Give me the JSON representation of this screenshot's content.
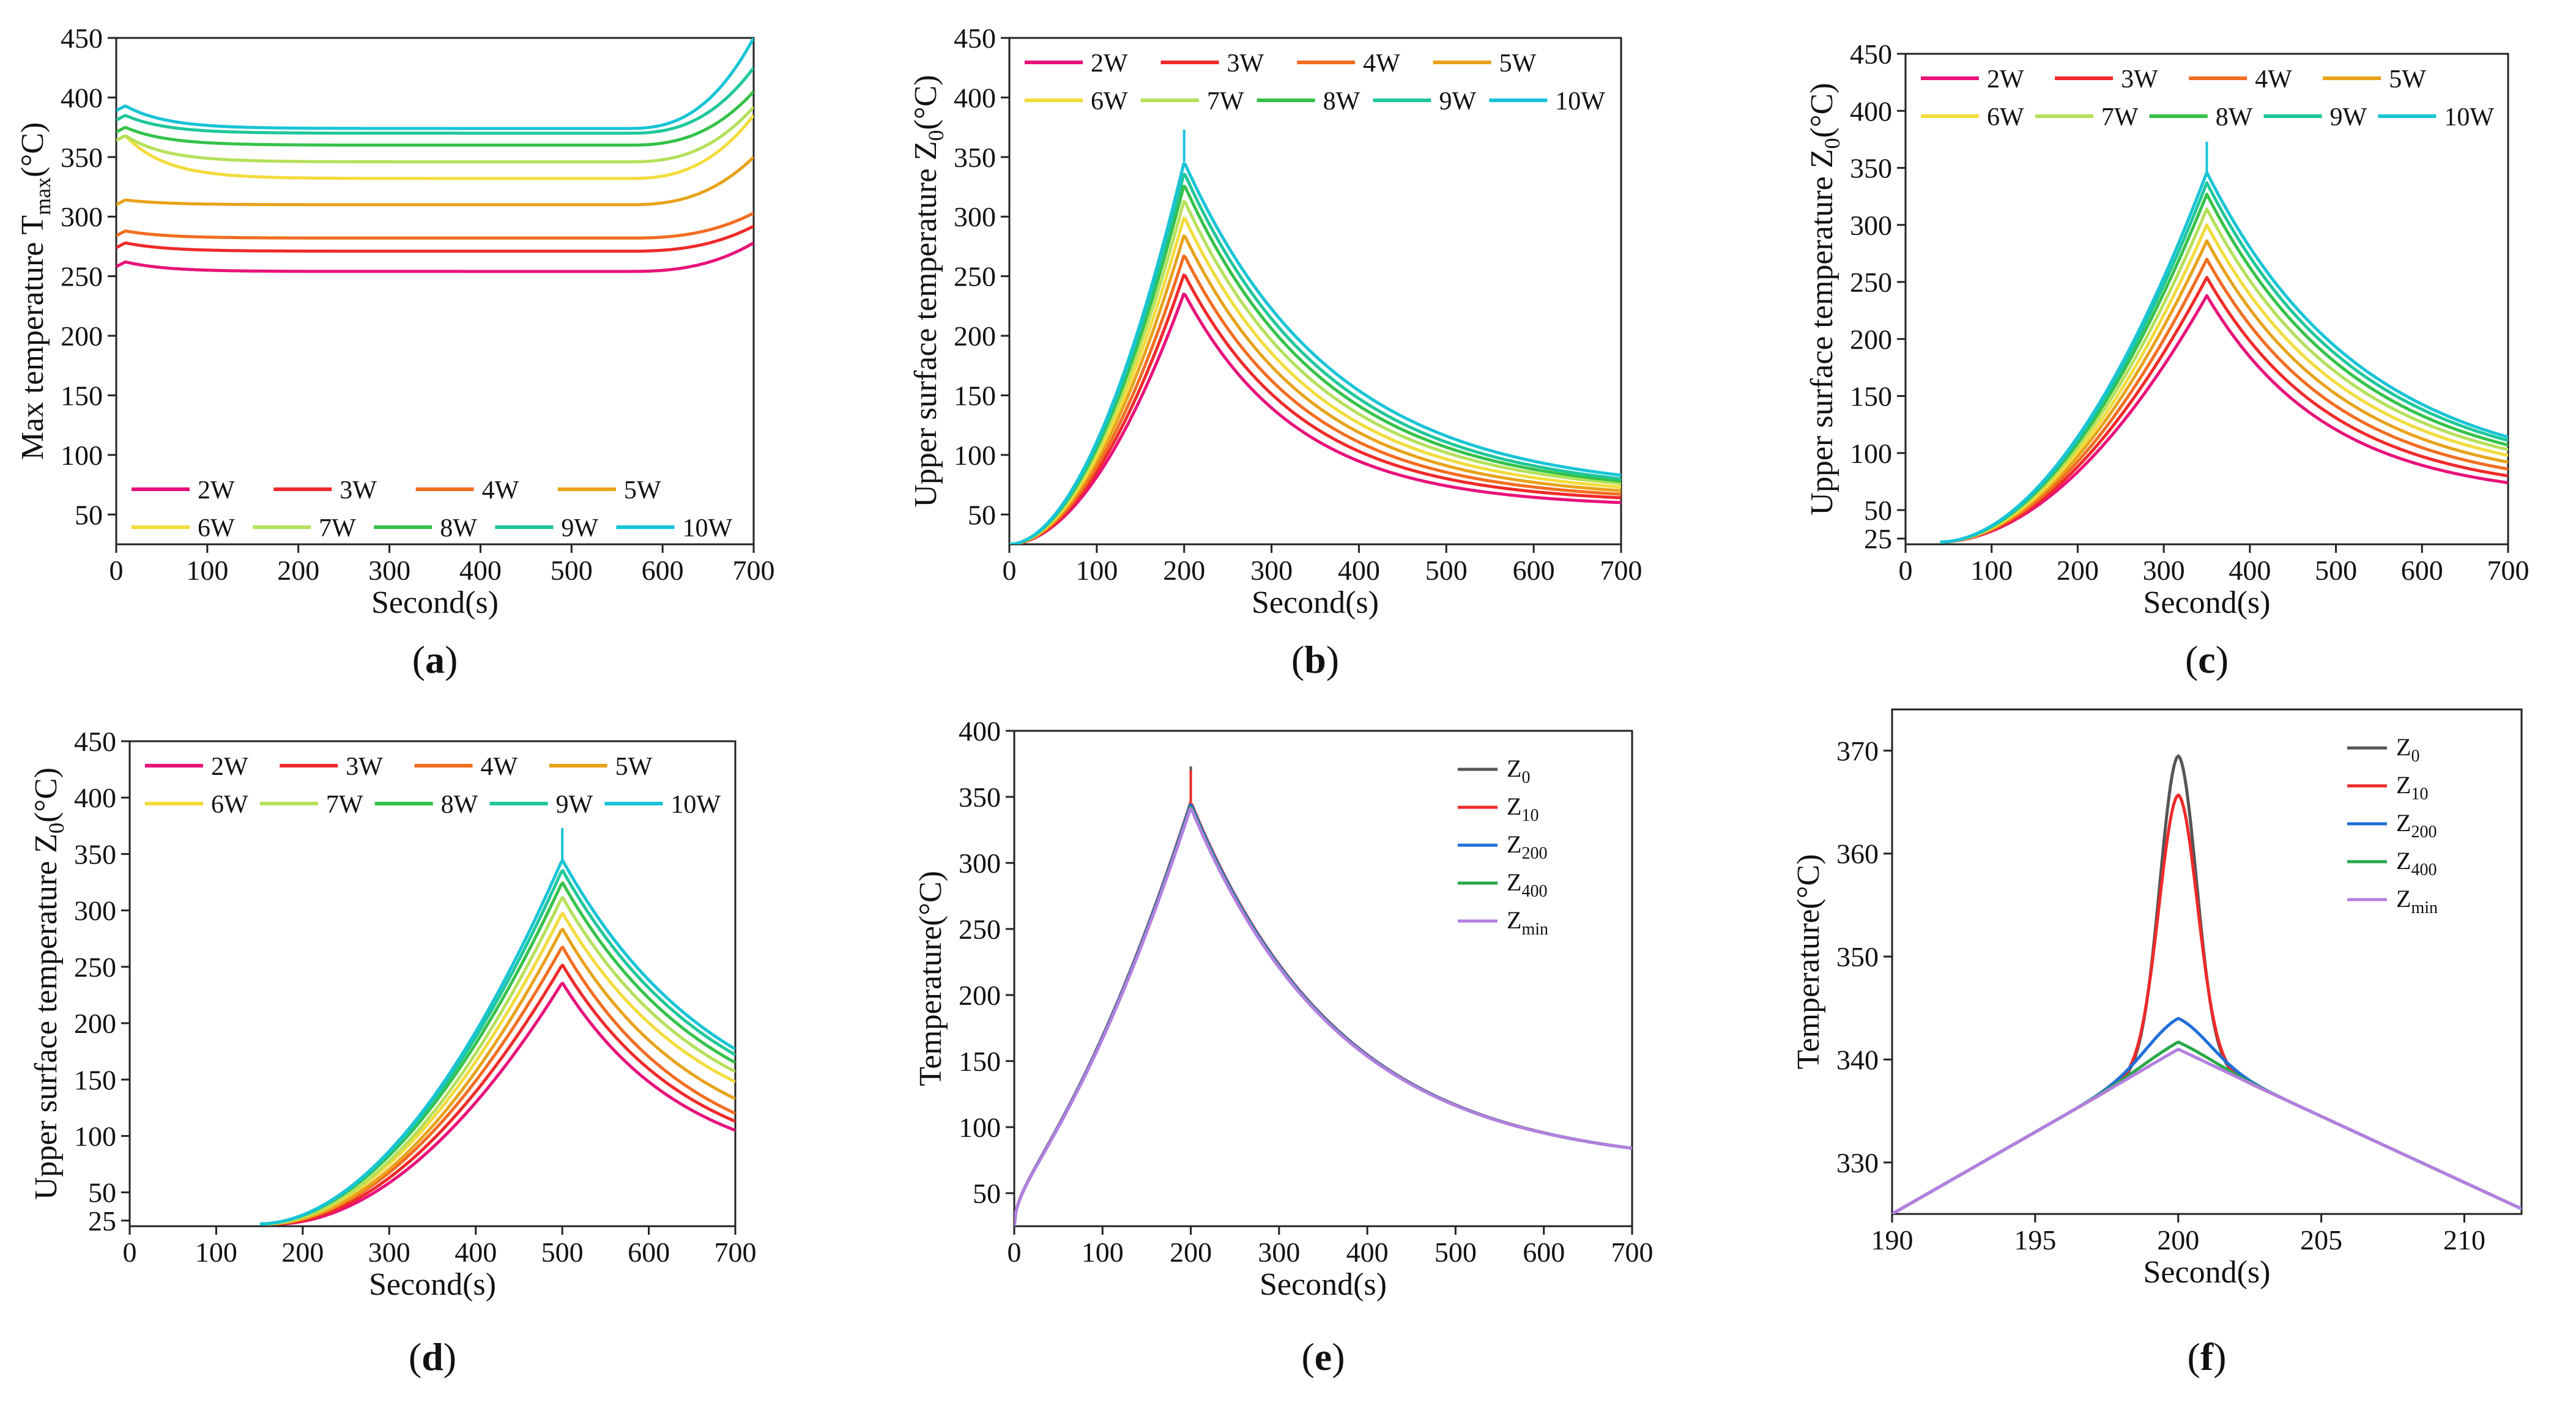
{
  "figure": {
    "series_colors": {
      "2W": "#e8127a",
      "3W": "#ef2a2a",
      "4W": "#f26d21",
      "5W": "#e8a21a",
      "6W": "#f2dc3c",
      "7W": "#b5e05a",
      "8W": "#35c24a",
      "9W": "#1fc79a",
      "10W": "#18c4d6",
      "Z_0": "#555555",
      "Z_10": "#ef2a2a",
      "Z_200": "#1f6fd8",
      "Z_400": "#2aa84a",
      "Z_min": "#b37fe0"
    }
  },
  "chart_data": [
    {
      "id": "a",
      "panel_label": "a",
      "type": "line",
      "xlabel": "Second(s)",
      "ylabel": "Max temperature T",
      "ylabel_sub": "max",
      "ylabel_tail": "(°C)",
      "xlim": [
        0,
        700
      ],
      "ylim": [
        25,
        450
      ],
      "xticks": [
        0,
        100,
        200,
        300,
        400,
        500,
        600,
        700
      ],
      "yticks": [
        50,
        100,
        150,
        200,
        250,
        300,
        350,
        400,
        450
      ],
      "legend": "bottom, 2 rows",
      "series": [
        {
          "name": "2W",
          "kind": "plateau",
          "start": 262,
          "plateau": 254,
          "end": 278
        },
        {
          "name": "3W",
          "kind": "plateau",
          "start": 278,
          "plateau": 271,
          "end": 292
        },
        {
          "name": "4W",
          "kind": "plateau",
          "start": 288,
          "plateau": 282,
          "end": 303
        },
        {
          "name": "5W",
          "kind": "plateau",
          "start": 314,
          "plateau": 310,
          "end": 350
        },
        {
          "name": "6W",
          "kind": "plateau",
          "start": 368,
          "plateau": 332,
          "end": 385
        },
        {
          "name": "7W",
          "kind": "plateau",
          "start": 368,
          "plateau": 346,
          "end": 392
        },
        {
          "name": "8W",
          "kind": "plateau",
          "start": 375,
          "plateau": 360,
          "end": 405
        },
        {
          "name": "9W",
          "kind": "plateau",
          "start": 385,
          "plateau": 370,
          "end": 425
        },
        {
          "name": "10W",
          "kind": "plateau",
          "start": 393,
          "plateau": 374,
          "end": 450
        }
      ]
    },
    {
      "id": "b",
      "panel_label": "b",
      "type": "line",
      "xlabel": "Second(s)",
      "ylabel": "Upper surface temperature Z",
      "ylabel_sub": "0",
      "ylabel_tail": "(°C)",
      "xlim": [
        0,
        700
      ],
      "ylim": [
        25,
        450
      ],
      "xticks": [
        0,
        100,
        200,
        300,
        400,
        500,
        600,
        700
      ],
      "yticks": [
        50,
        100,
        150,
        200,
        250,
        300,
        350,
        400,
        450
      ],
      "legend": "top, 2 rows",
      "series": [
        {
          "name": "2W",
          "kind": "peak",
          "t0": 0,
          "v0": 25,
          "tp": 200,
          "vp": 236,
          "v_end": 60,
          "rise_tau": 160,
          "decay_tau": 130
        },
        {
          "name": "3W",
          "kind": "peak",
          "t0": 0,
          "v0": 25,
          "tp": 200,
          "vp": 252,
          "v_end": 64,
          "rise_tau": 155,
          "decay_tau": 135
        },
        {
          "name": "4W",
          "kind": "peak",
          "t0": 0,
          "v0": 25,
          "tp": 200,
          "vp": 268,
          "v_end": 67,
          "rise_tau": 150,
          "decay_tau": 140
        },
        {
          "name": "5W",
          "kind": "peak",
          "t0": 0,
          "v0": 25,
          "tp": 200,
          "vp": 285,
          "v_end": 70,
          "rise_tau": 145,
          "decay_tau": 145
        },
        {
          "name": "6W",
          "kind": "peak",
          "t0": 0,
          "v0": 25,
          "tp": 200,
          "vp": 300,
          "v_end": 73,
          "rise_tau": 140,
          "decay_tau": 150
        },
        {
          "name": "7W",
          "kind": "peak",
          "t0": 0,
          "v0": 25,
          "tp": 200,
          "vp": 314,
          "v_end": 76,
          "rise_tau": 135,
          "decay_tau": 155
        },
        {
          "name": "8W",
          "kind": "peak",
          "t0": 0,
          "v0": 25,
          "tp": 200,
          "vp": 327,
          "v_end": 78,
          "rise_tau": 130,
          "decay_tau": 160
        },
        {
          "name": "9W",
          "kind": "peak",
          "t0": 0,
          "v0": 25,
          "tp": 200,
          "vp": 337,
          "v_end": 80,
          "rise_tau": 125,
          "decay_tau": 165
        },
        {
          "name": "10W",
          "kind": "peak",
          "t0": 0,
          "v0": 25,
          "tp": 200,
          "vp": 346,
          "v_end": 83,
          "rise_tau": 120,
          "decay_tau": 170,
          "spike": 373
        }
      ]
    },
    {
      "id": "c",
      "panel_label": "c",
      "type": "line",
      "xlabel": "Second(s)",
      "ylabel": "Upper surface temperature Z",
      "ylabel_sub": "0",
      "ylabel_tail": "(°C)",
      "xlim": [
        0,
        700
      ],
      "ylim": [
        20,
        450
      ],
      "xticks": [
        0,
        100,
        200,
        300,
        400,
        500,
        600,
        700
      ],
      "yticks": [
        25,
        50,
        100,
        150,
        200,
        250,
        300,
        350,
        400,
        450
      ],
      "legend": "top, 2 rows",
      "series": [
        {
          "name": "2W",
          "kind": "peak",
          "t0": 40,
          "v0": 22,
          "tp": 350,
          "vp": 238,
          "v_end": 74,
          "rise_tau": 110,
          "decay_tau": 140
        },
        {
          "name": "3W",
          "kind": "peak",
          "t0": 40,
          "v0": 22,
          "tp": 350,
          "vp": 254,
          "v_end": 80,
          "rise_tau": 108,
          "decay_tau": 145
        },
        {
          "name": "4W",
          "kind": "peak",
          "t0": 40,
          "v0": 22,
          "tp": 350,
          "vp": 270,
          "v_end": 86,
          "rise_tau": 105,
          "decay_tau": 150
        },
        {
          "name": "5W",
          "kind": "peak",
          "t0": 40,
          "v0": 22,
          "tp": 350,
          "vp": 286,
          "v_end": 92,
          "rise_tau": 102,
          "decay_tau": 155
        },
        {
          "name": "6W",
          "kind": "peak",
          "t0": 40,
          "v0": 22,
          "tp": 350,
          "vp": 300,
          "v_end": 98,
          "rise_tau": 100,
          "decay_tau": 160
        },
        {
          "name": "7W",
          "kind": "peak",
          "t0": 40,
          "v0": 22,
          "tp": 350,
          "vp": 314,
          "v_end": 103,
          "rise_tau": 98,
          "decay_tau": 165
        },
        {
          "name": "8W",
          "kind": "peak",
          "t0": 40,
          "v0": 22,
          "tp": 350,
          "vp": 327,
          "v_end": 107,
          "rise_tau": 96,
          "decay_tau": 170
        },
        {
          "name": "9W",
          "kind": "peak",
          "t0": 40,
          "v0": 22,
          "tp": 350,
          "vp": 337,
          "v_end": 111,
          "rise_tau": 94,
          "decay_tau": 175
        },
        {
          "name": "10W",
          "kind": "peak",
          "t0": 40,
          "v0": 22,
          "tp": 350,
          "vp": 346,
          "v_end": 114,
          "rise_tau": 92,
          "decay_tau": 180,
          "spike": 373
        }
      ]
    },
    {
      "id": "d",
      "panel_label": "d",
      "type": "line",
      "xlabel": "Second(s)",
      "ylabel": "Upper surface temperature Z",
      "ylabel_sub": "0",
      "ylabel_tail": "(°C)",
      "xlim": [
        0,
        700
      ],
      "ylim": [
        20,
        450
      ],
      "xticks": [
        0,
        100,
        200,
        300,
        400,
        500,
        600,
        700
      ],
      "yticks": [
        25,
        50,
        100,
        150,
        200,
        250,
        300,
        350,
        400,
        450
      ],
      "legend": "top, 2 rows",
      "series": [
        {
          "name": "2W",
          "kind": "peak",
          "t0": 170,
          "v0": 22,
          "tp": 500,
          "vp": 236,
          "v_end": 105,
          "rise_tau": 110,
          "decay_tau": 140
        },
        {
          "name": "3W",
          "kind": "peak",
          "t0": 165,
          "v0": 22,
          "tp": 500,
          "vp": 252,
          "v_end": 113,
          "rise_tau": 108,
          "decay_tau": 145
        },
        {
          "name": "4W",
          "kind": "peak",
          "t0": 160,
          "v0": 22,
          "tp": 500,
          "vp": 268,
          "v_end": 120,
          "rise_tau": 105,
          "decay_tau": 150
        },
        {
          "name": "5W",
          "kind": "peak",
          "t0": 160,
          "v0": 22,
          "tp": 500,
          "vp": 284,
          "v_end": 133,
          "rise_tau": 102,
          "decay_tau": 155
        },
        {
          "name": "6W",
          "kind": "peak",
          "t0": 155,
          "v0": 22,
          "tp": 500,
          "vp": 298,
          "v_end": 148,
          "rise_tau": 100,
          "decay_tau": 160
        },
        {
          "name": "7W",
          "kind": "peak",
          "t0": 155,
          "v0": 22,
          "tp": 500,
          "vp": 312,
          "v_end": 157,
          "rise_tau": 98,
          "decay_tau": 165
        },
        {
          "name": "8W",
          "kind": "peak",
          "t0": 150,
          "v0": 22,
          "tp": 500,
          "vp": 325,
          "v_end": 165,
          "rise_tau": 96,
          "decay_tau": 170
        },
        {
          "name": "9W",
          "kind": "peak",
          "t0": 150,
          "v0": 22,
          "tp": 500,
          "vp": 336,
          "v_end": 172,
          "rise_tau": 94,
          "decay_tau": 175
        },
        {
          "name": "10W",
          "kind": "peak",
          "t0": 150,
          "v0": 22,
          "tp": 500,
          "vp": 345,
          "v_end": 177,
          "rise_tau": 92,
          "decay_tau": 180,
          "spike": 373
        }
      ]
    },
    {
      "id": "e",
      "panel_label": "e",
      "type": "line",
      "xlabel": "Second(s)",
      "ylabel": "Temperature(°C)",
      "ylabel_sub": "",
      "ylabel_tail": "",
      "xlim": [
        0,
        700
      ],
      "ylim": [
        25,
        400
      ],
      "xticks": [
        0,
        100,
        200,
        300,
        400,
        500,
        600,
        700
      ],
      "yticks": [
        50,
        100,
        150,
        200,
        250,
        300,
        350,
        400
      ],
      "legend": "top-right, 1 column",
      "series": [
        {
          "name": "Z",
          "sub": "0",
          "kind": "peak",
          "t0": 0,
          "v0": 25,
          "tp": 200,
          "vp": 346,
          "v_end": 84,
          "rise_tau": 120,
          "decay_tau": 170,
          "spike": 373,
          "hook": true
        },
        {
          "name": "Z",
          "sub": "10",
          "kind": "peak",
          "t0": 0,
          "v0": 25,
          "tp": 200,
          "vp": 346,
          "v_end": 84,
          "rise_tau": 120,
          "decay_tau": 170,
          "spike": 370,
          "hook": true
        },
        {
          "name": "Z",
          "sub": "200",
          "kind": "peak",
          "t0": 0,
          "v0": 25,
          "tp": 200,
          "vp": 345,
          "v_end": 84,
          "rise_tau": 120,
          "decay_tau": 170,
          "hook": true
        },
        {
          "name": "Z",
          "sub": "400",
          "kind": "peak",
          "t0": 0,
          "v0": 25,
          "tp": 200,
          "vp": 343,
          "v_end": 84,
          "rise_tau": 120,
          "decay_tau": 170,
          "hook": true
        },
        {
          "name": "Z",
          "sub": "min",
          "kind": "peak",
          "t0": 0,
          "v0": 25,
          "tp": 200,
          "vp": 342,
          "v_end": 84,
          "rise_tau": 120,
          "decay_tau": 170,
          "hook": true
        }
      ]
    },
    {
      "id": "f",
      "panel_label": "f",
      "type": "line",
      "xlabel": "Second(s)",
      "ylabel": "Temperature(°C)",
      "ylabel_sub": "",
      "ylabel_tail": "",
      "xlim": [
        190,
        212
      ],
      "ylim": [
        325,
        374
      ],
      "xticks": [
        190,
        195,
        200,
        205,
        210
      ],
      "yticks": [
        330,
        340,
        350,
        360,
        370
      ],
      "legend": "top-right, 1 column",
      "series": [
        {
          "name": "Z",
          "sub": "0",
          "kind": "zoom",
          "base": 340.9,
          "peak": 369.5,
          "width": 0.9
        },
        {
          "name": "Z",
          "sub": "10",
          "kind": "zoom",
          "base": 340.9,
          "peak": 365.7,
          "width": 0.95
        },
        {
          "name": "Z",
          "sub": "200",
          "kind": "zoom",
          "base": 340.9,
          "peak": 344.0,
          "width": 1.6
        },
        {
          "name": "Z",
          "sub": "400",
          "kind": "zoom",
          "base": 340.9,
          "peak": 341.7,
          "width": 1.8
        },
        {
          "name": "Z",
          "sub": "min",
          "kind": "zoom",
          "base": 340.9,
          "peak": 341.0,
          "width": 2.0
        }
      ]
    }
  ]
}
